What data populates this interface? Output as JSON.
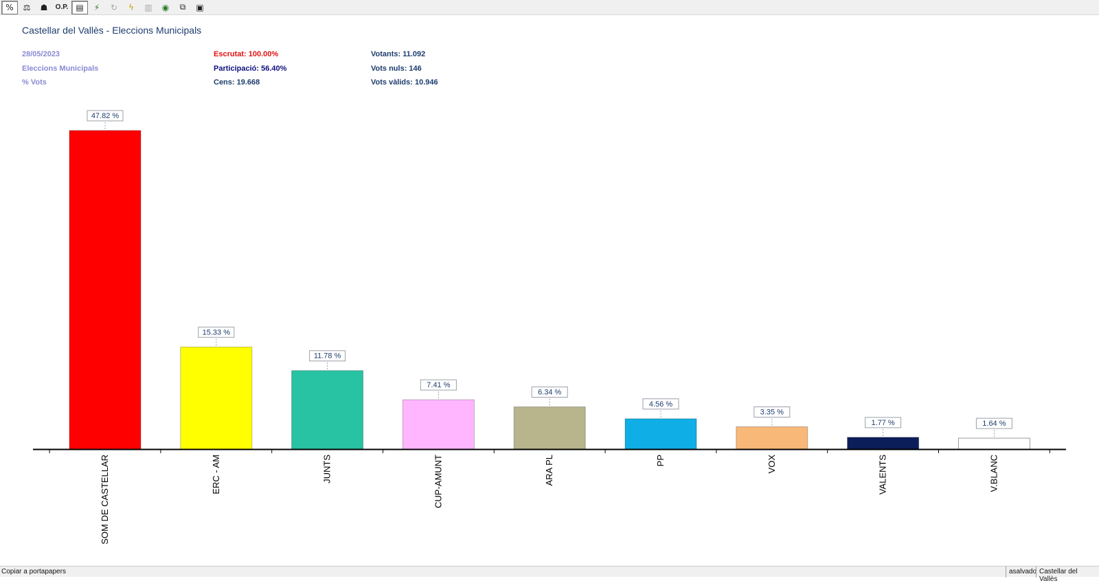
{
  "toolbar": {
    "buttons": [
      {
        "glyph": "%",
        "icon": "percent-icon"
      },
      {
        "glyph": "⚖",
        "icon": "seats-icon"
      },
      {
        "glyph": "☗",
        "icon": "candidate-icon"
      },
      {
        "glyph": "O.P.",
        "icon": "op-icon"
      },
      {
        "glyph": "▤",
        "icon": "document-icon"
      },
      {
        "glyph": "⚡",
        "icon": "flash-multi-icon"
      },
      {
        "glyph": "↻",
        "icon": "refresh-icon"
      },
      {
        "glyph": "ϟ",
        "icon": "lightning-icon"
      },
      {
        "glyph": "▥",
        "icon": "bar-chart-icon"
      },
      {
        "glyph": "◉",
        "icon": "map-icon"
      },
      {
        "glyph": "⧉",
        "icon": "copy-icon"
      },
      {
        "glyph": "▣",
        "icon": "export-icon"
      }
    ]
  },
  "header": {
    "title": "Castellar del Vallès - Eleccions Municipals",
    "date": "28/05/2023",
    "election_type": "Eleccions Municipals",
    "metric": "% Vots",
    "escrutat": "Escrutat: 100.00%",
    "participacio": "Participació: 56.40%",
    "cens": "Cens: 19.668",
    "votants": "Votants: 11.092",
    "vots_nuls": "Vots nuls: 146",
    "vots_valids": "Vots vàlids: 10.946"
  },
  "chart_data": {
    "type": "bar",
    "categories": [
      "SOM DE CASTELLAR",
      "ERC - AM",
      "JUNTS",
      "CUP-AMUNT",
      "ARA PL",
      "PP",
      "VOX",
      "VALENTS",
      "V.BLANC"
    ],
    "values": [
      47.82,
      15.33,
      11.78,
      7.41,
      6.34,
      4.56,
      3.35,
      1.77,
      1.64
    ],
    "labels": [
      "47.82 %",
      "15.33 %",
      "11.78 %",
      "7.41 %",
      "6.34 %",
      "4.56 %",
      "3.35 %",
      "1.77 %",
      "1.64 %"
    ],
    "colors": [
      "#ff0000",
      "#ffff00",
      "#27c3a3",
      "#ffb6ff",
      "#b8b48c",
      "#10aee6",
      "#f8b878",
      "#0c1e5a",
      "#ffffff"
    ],
    "ylim": [
      0,
      47.82
    ]
  },
  "statusbar": {
    "left": "Copiar a portapapers",
    "user": "asalvado",
    "place": "Castellar del Vallès"
  }
}
